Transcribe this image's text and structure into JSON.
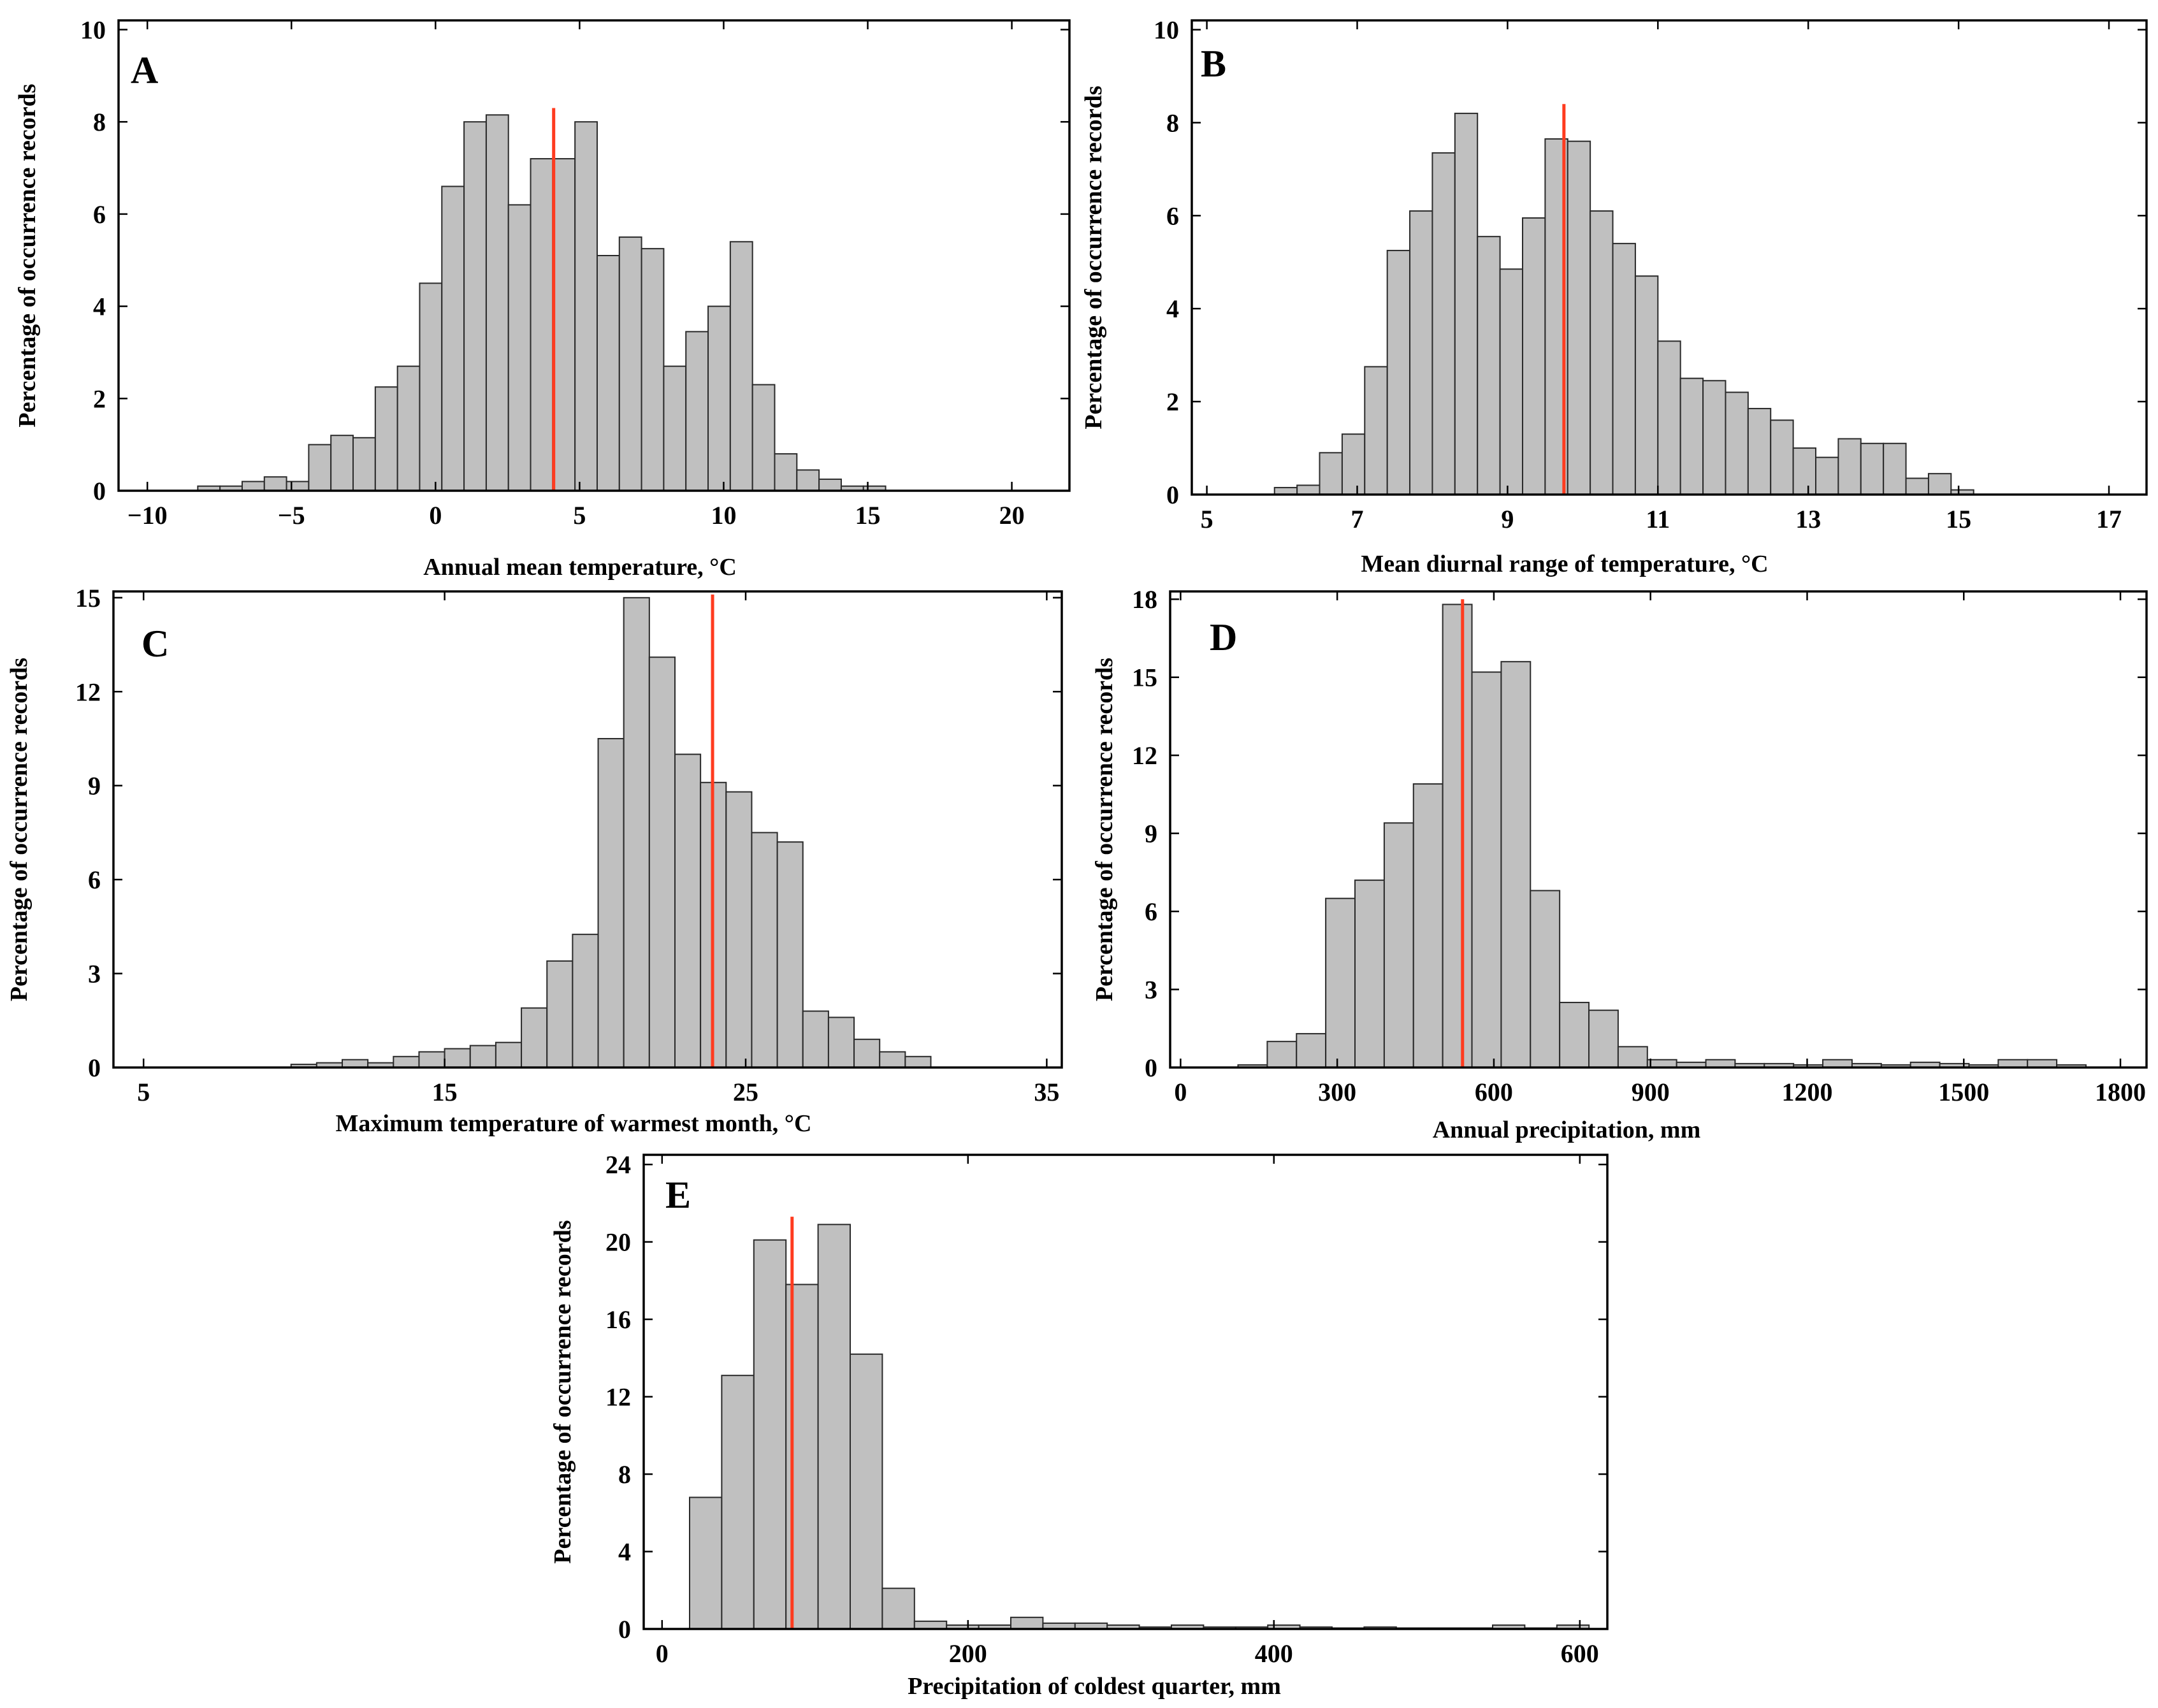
{
  "figure_ylabel": "Percentage of occurrence records",
  "chart_data": [
    {
      "type": "bar",
      "panel": "A",
      "xlabel": "Annual mean temperature, °C",
      "ylabel": "Percentage of occurrence records",
      "xlim": [
        -11,
        22
      ],
      "ylim": [
        0,
        10.2
      ],
      "xticks": [
        -10,
        -5,
        0,
        5,
        10,
        15,
        20
      ],
      "xtick_labels": [
        "−10",
        "−5",
        "0",
        "5",
        "10",
        "15",
        "20"
      ],
      "yticks": [
        0,
        2,
        4,
        6,
        8,
        10
      ],
      "ytick_labels": [
        "0",
        "2",
        "4",
        "6",
        "8",
        "10"
      ],
      "bin_start": -8.25,
      "bin_width": 0.77,
      "values": [
        0.1,
        0.1,
        0.2,
        0.3,
        0.2,
        1.0,
        1.2,
        1.15,
        2.25,
        2.7,
        4.5,
        6.6,
        8.0,
        8.15,
        6.2,
        7.2,
        7.2,
        8.0,
        5.1,
        5.5,
        5.25,
        2.7,
        3.45,
        4.0,
        5.4,
        2.3,
        0.8,
        0.45,
        0.25,
        0.1,
        0.1
      ],
      "baseline_range": [
        -9,
        16
      ],
      "reference_value": 4.1,
      "reference_height": 8.3
    },
    {
      "type": "bar",
      "panel": "B",
      "xlabel": "Mean diurnal range of temperature, °C",
      "ylabel": "Percentage of occurrence records",
      "xlim": [
        4.8,
        17.5
      ],
      "ylim": [
        0,
        10.2
      ],
      "xticks": [
        5,
        7,
        9,
        11,
        13,
        15,
        17
      ],
      "xtick_labels": [
        "5",
        "7",
        "9",
        "11",
        "13",
        "15",
        "17"
      ],
      "yticks": [
        0,
        2,
        4,
        6,
        8,
        10
      ],
      "ytick_labels": [
        "0",
        "2",
        "4",
        "6",
        "8",
        "10"
      ],
      "bin_start": 5.9,
      "bin_width": 0.3,
      "values": [
        0.15,
        0.2,
        0.9,
        1.3,
        2.75,
        5.25,
        6.1,
        7.35,
        8.2,
        5.55,
        4.85,
        5.95,
        7.65,
        7.6,
        6.1,
        5.4,
        4.7,
        3.3,
        2.5,
        2.45,
        2.2,
        1.85,
        1.6,
        1.0,
        0.8,
        1.2,
        1.1,
        1.1,
        0.35,
        0.45,
        0.1
      ],
      "baseline_range": [
        5.6,
        15.6
      ],
      "reference_value": 9.75,
      "reference_height": 8.4
    },
    {
      "type": "bar",
      "panel": "C",
      "xlabel": "Maximum temperature of warmest month, °C",
      "ylabel": "Percentage of occurrence records",
      "xlim": [
        4,
        35.5
      ],
      "ylim": [
        0,
        15.2
      ],
      "xticks": [
        5,
        15,
        25,
        35
      ],
      "xtick_labels": [
        "5",
        "15",
        "25",
        "35"
      ],
      "yticks": [
        0,
        3,
        6,
        9,
        12,
        15
      ],
      "ytick_labels": [
        "0",
        "3",
        "6",
        "9",
        "12",
        "15"
      ],
      "bin_start": 9.9,
      "bin_width": 0.85,
      "values": [
        0.1,
        0.15,
        0.25,
        0.15,
        0.35,
        0.5,
        0.6,
        0.7,
        0.8,
        1.9,
        3.4,
        4.25,
        10.5,
        15.0,
        13.1,
        10.0,
        9.1,
        8.8,
        7.5,
        7.2,
        1.8,
        1.6,
        0.9,
        0.5,
        0.35
      ],
      "baseline_range": [
        9,
        34.2
      ],
      "reference_value": 23.9,
      "reference_height": 15.1
    },
    {
      "type": "bar",
      "panel": "D",
      "xlabel": "Annual precipitation, mm",
      "ylabel": "Percentage of occurrence records",
      "xlim": [
        -20,
        1850
      ],
      "ylim": [
        0,
        18.3
      ],
      "xticks": [
        0,
        300,
        600,
        900,
        1200,
        1500,
        1800
      ],
      "xtick_labels": [
        "0",
        "300",
        "600",
        "900",
        "1200",
        "1500",
        "1800"
      ],
      "yticks": [
        0,
        3,
        6,
        9,
        12,
        15,
        18
      ],
      "ytick_labels": [
        "0",
        "3",
        "6",
        "9",
        "12",
        "15",
        "18"
      ],
      "bin_start": 110,
      "bin_width": 56,
      "values": [
        0.1,
        1.0,
        1.3,
        6.5,
        7.2,
        9.4,
        10.9,
        17.8,
        15.2,
        15.6,
        6.8,
        2.5,
        2.2,
        0.8,
        0.3,
        0.2,
        0.3,
        0.15,
        0.15,
        0.1,
        0.3,
        0.15,
        0.1,
        0.2,
        0.15,
        0.1,
        0.3,
        0.3,
        0.1
      ],
      "baseline_range": [
        0,
        1780
      ],
      "reference_value": 540,
      "reference_height": 18.0
    },
    {
      "type": "bar",
      "panel": "E",
      "xlabel": "Precipitation of coldest quarter, mm",
      "ylabel": "Percentage of occurrence records",
      "xlim": [
        -12,
        618
      ],
      "ylim": [
        0,
        24.5
      ],
      "xticks": [
        0,
        200,
        400,
        600
      ],
      "xtick_labels": [
        "0",
        "200",
        "400",
        "600"
      ],
      "yticks": [
        0,
        4,
        8,
        12,
        16,
        20,
        24
      ],
      "ytick_labels": [
        "0",
        "4",
        "8",
        "12",
        "16",
        "20",
        "24"
      ],
      "bin_start": 18,
      "bin_width": 21,
      "values": [
        6.8,
        13.1,
        20.1,
        17.8,
        20.9,
        14.2,
        2.1,
        0.4,
        0.2,
        0.2,
        0.6,
        0.3,
        0.3,
        0.2,
        0.1,
        0.2,
        0.1,
        0.1,
        0.2,
        0.1,
        0.05,
        0.1,
        0.05,
        0.05,
        0.05,
        0.2,
        0.05,
        0.2
      ],
      "baseline_range": [
        18,
        578
      ],
      "reference_value": 85,
      "reference_height": 21.3
    }
  ]
}
